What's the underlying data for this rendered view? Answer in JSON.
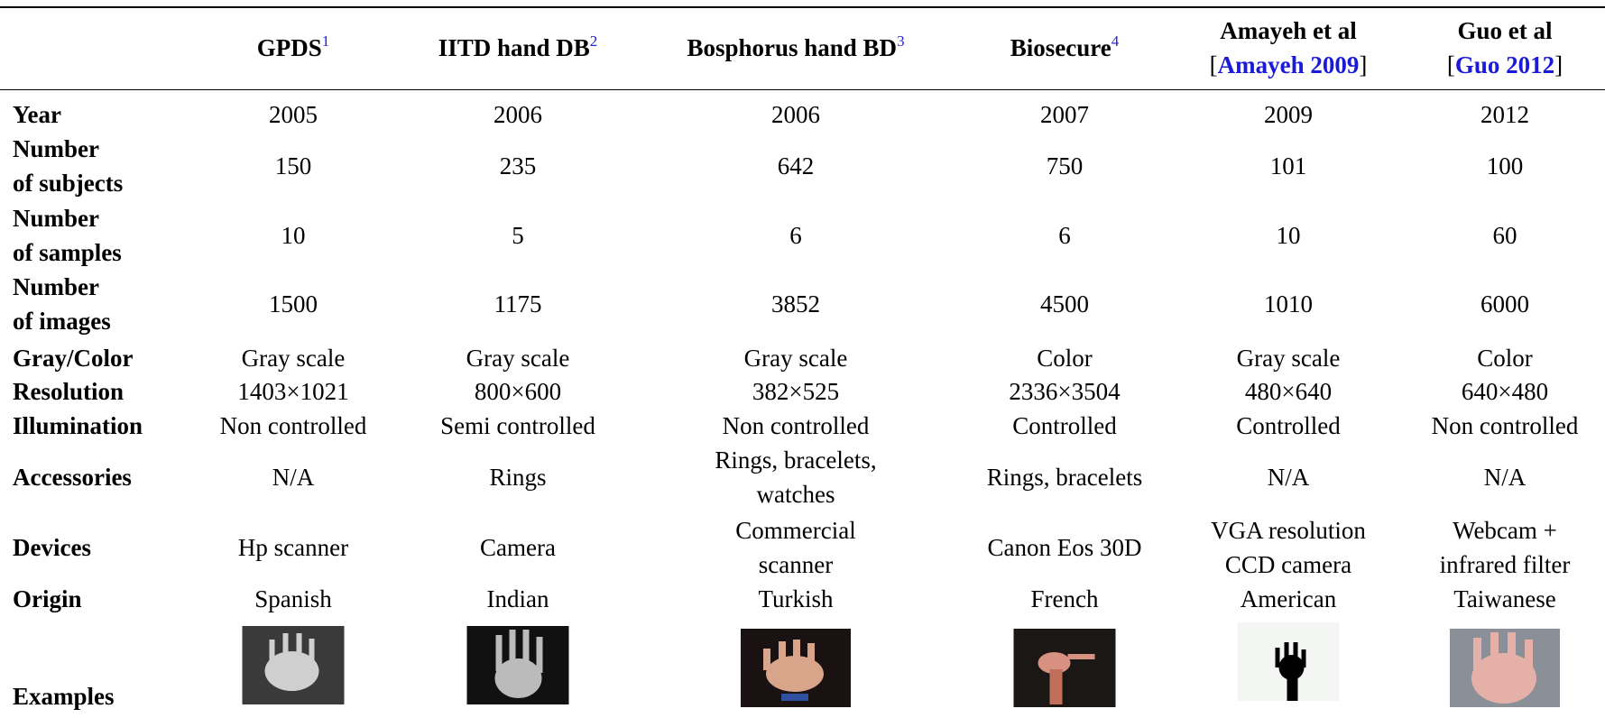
{
  "table": {
    "columns": [
      {
        "name": [
          "GPDS"
        ],
        "sup": "1"
      },
      {
        "name": [
          "IITD hand DB"
        ],
        "sup": "2"
      },
      {
        "name": [
          "Bosphorus hand BD"
        ],
        "sup": "3"
      },
      {
        "name": [
          "Biosecure"
        ],
        "sup": "4"
      },
      {
        "name": [
          "Amayeh et al"
        ],
        "citation": {
          "open": "[",
          "text": "Amayeh 2009",
          "close": "]"
        }
      },
      {
        "name": [
          "Guo et al"
        ],
        "citation": {
          "open": "[",
          "text": "Guo 2012",
          "close": "]"
        }
      }
    ],
    "rows": [
      {
        "label": [
          "Year"
        ],
        "cells": [
          2005,
          2006,
          2006,
          2007,
          2009,
          2012
        ]
      },
      {
        "label": [
          "Number",
          "of subjects"
        ],
        "cells": [
          150,
          235,
          642,
          750,
          101,
          100
        ]
      },
      {
        "label": [
          "Number",
          "of samples"
        ],
        "cells": [
          10,
          5,
          6,
          6,
          10,
          60
        ]
      },
      {
        "label": [
          "Number",
          "of images"
        ],
        "cells": [
          1500,
          1175,
          3852,
          4500,
          1010,
          6000
        ]
      },
      {
        "label": [
          "Gray/Color"
        ],
        "cells": [
          [
            "Gray scale"
          ],
          [
            "Gray scale"
          ],
          [
            "Gray scale"
          ],
          [
            "Color"
          ],
          [
            "Gray scale"
          ],
          [
            "Color"
          ]
        ]
      },
      {
        "label": [
          "Resolution"
        ],
        "cells": [
          [
            "1403×1021"
          ],
          [
            "800×600"
          ],
          [
            "382×525"
          ],
          [
            "2336×3504"
          ],
          [
            "480×640"
          ],
          [
            "640×480"
          ]
        ]
      },
      {
        "label": [
          "Illumination"
        ],
        "cells": [
          [
            "Non controlled"
          ],
          [
            "Semi controlled"
          ],
          [
            "Non controlled"
          ],
          [
            "Controlled"
          ],
          [
            "Controlled"
          ],
          [
            "Non controlled"
          ]
        ]
      },
      {
        "label": [
          "Accessories"
        ],
        "cells": [
          [
            "N/A"
          ],
          [
            "Rings"
          ],
          [
            "Rings, bracelets,",
            "watches"
          ],
          [
            "Rings, bracelets"
          ],
          [
            "N/A"
          ],
          [
            "N/A"
          ]
        ]
      },
      {
        "label": [
          "Devices"
        ],
        "cells": [
          [
            "Hp scanner"
          ],
          [
            "Camera"
          ],
          [
            "Commercial",
            "scanner"
          ],
          [
            "Canon Eos 30D"
          ],
          [
            "VGA resolution",
            "CCD camera"
          ],
          [
            "Webcam +",
            "infrared filter"
          ]
        ]
      },
      {
        "label": [
          "Origin"
        ],
        "cells": [
          [
            "Spanish"
          ],
          [
            "Indian"
          ],
          [
            "Turkish"
          ],
          [
            "French"
          ],
          [
            "American"
          ],
          [
            "Taiwanese"
          ]
        ]
      },
      {
        "label": [
          "Examples"
        ],
        "cells": []
      }
    ]
  }
}
